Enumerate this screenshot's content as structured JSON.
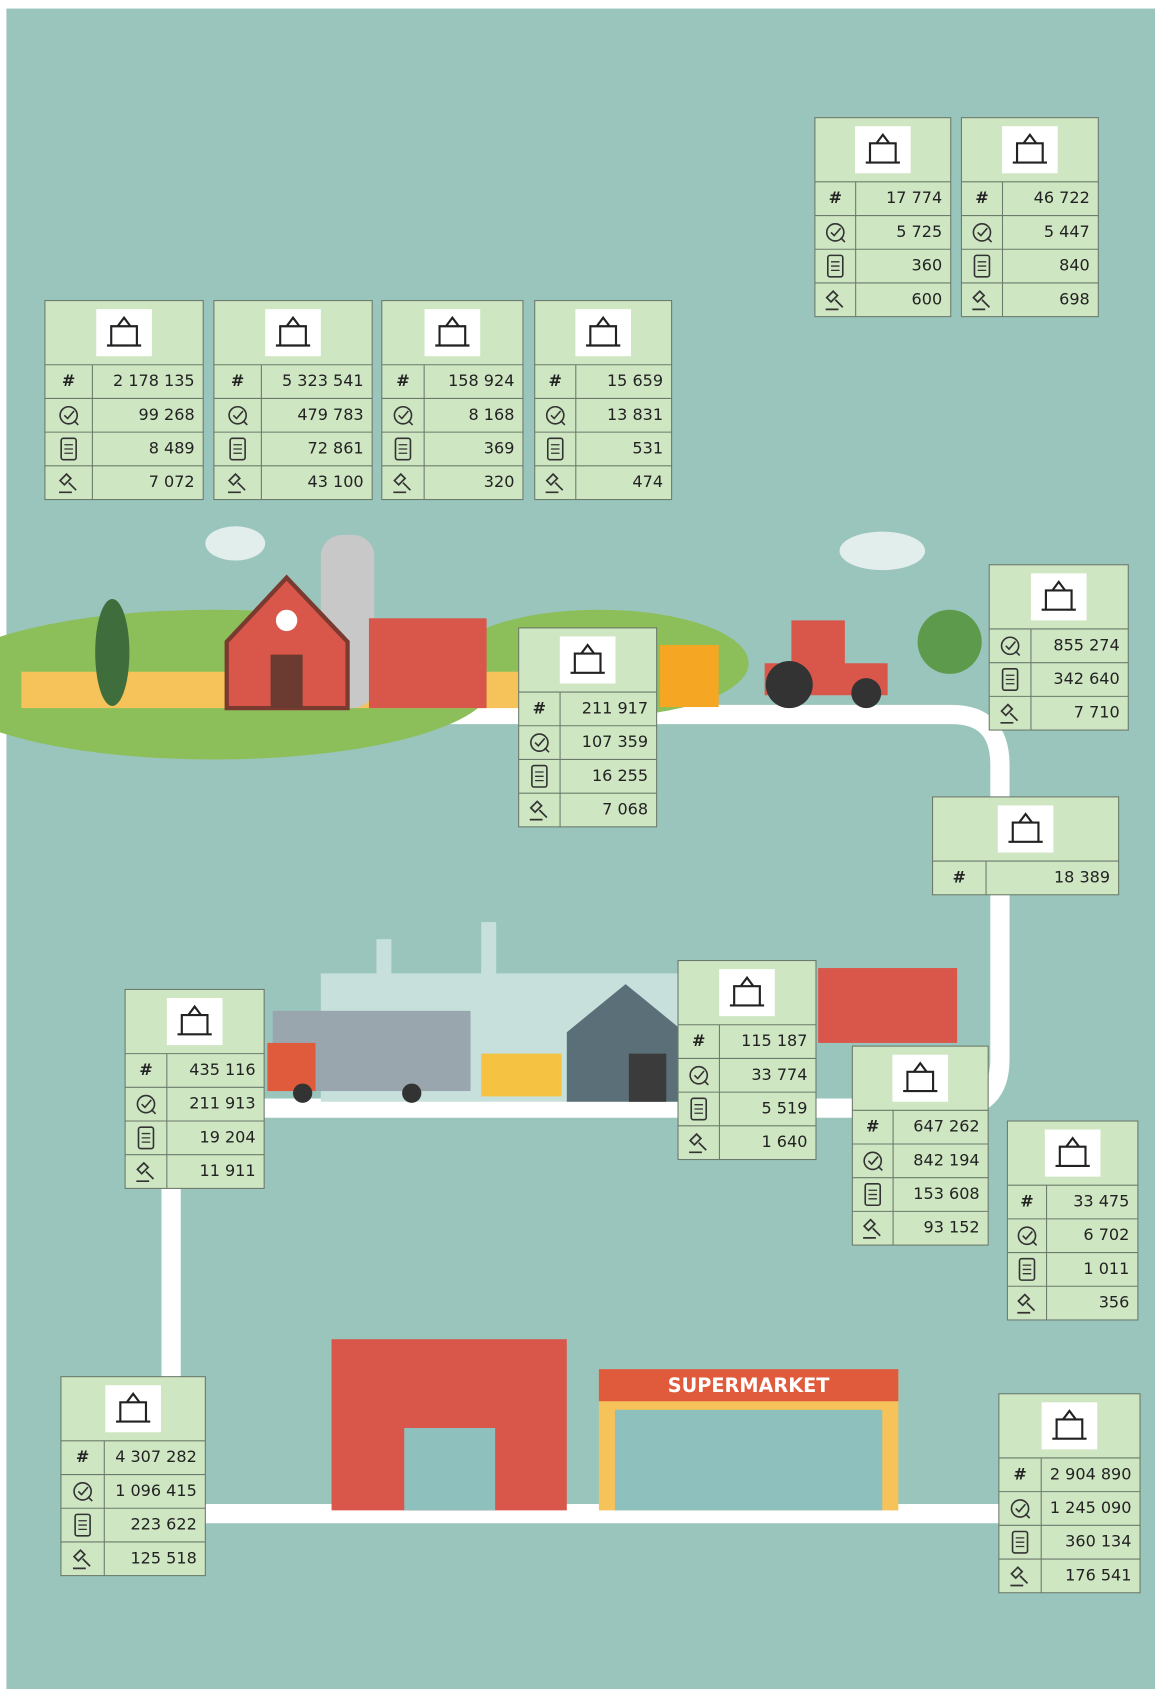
{
  "tables": [
    {
      "rows": [
        {
          "label": "#",
          "value": "2 178 135"
        },
        {
          "value": "99 268"
        },
        {
          "value": "8 489"
        },
        {
          "value": "7 072"
        }
      ]
    },
    {
      "rows": [
        {
          "label": "#",
          "value": "5 323 541"
        },
        {
          "value": "479 783"
        },
        {
          "value": "72 861"
        },
        {
          "value": "43 100"
        }
      ]
    },
    {
      "rows": [
        {
          "label": "#",
          "value": "158 924"
        },
        {
          "value": "8 168"
        },
        {
          "value": "369"
        },
        {
          "value": "320"
        }
      ]
    },
    {
      "rows": [
        {
          "label": "#",
          "value": "15 659"
        },
        {
          "value": "13 831"
        },
        {
          "value": "531"
        },
        {
          "value": "474"
        }
      ]
    },
    {
      "rows": [
        {
          "label": "#",
          "value": "17 774"
        },
        {
          "value": "5 725"
        },
        {
          "value": "360"
        },
        {
          "value": "600"
        }
      ]
    },
    {
      "rows": [
        {
          "label": "#",
          "value": "46 722"
        },
        {
          "value": "5 447"
        },
        {
          "value": "840"
        },
        {
          "value": "698"
        }
      ]
    },
    {
      "rows": [
        {
          "label": "#",
          "value": "211 917"
        },
        {
          "value": "107 359"
        },
        {
          "value": "16 255"
        },
        {
          "value": "7 068"
        }
      ]
    },
    {
      "rows": [
        {
          "value": "855 274"
        },
        {
          "value": "342 640"
        },
        {
          "value": "7 710"
        }
      ]
    },
    {
      "rows": [
        {
          "label": "#",
          "value": "18 389"
        }
      ]
    },
    {
      "rows": [
        {
          "label": "#",
          "value": "435 116"
        },
        {
          "value": "211 913"
        },
        {
          "value": "19 204"
        },
        {
          "value": "11 911"
        }
      ]
    },
    {
      "rows": [
        {
          "label": "#",
          "value": "115 187"
        },
        {
          "value": "33 774"
        },
        {
          "value": "5 519"
        },
        {
          "value": "1 640"
        }
      ]
    },
    {
      "rows": [
        {
          "label": "#",
          "value": "647 262"
        },
        {
          "value": "842 194"
        },
        {
          "value": "153 608"
        },
        {
          "value": "93 152"
        }
      ]
    },
    {
      "rows": [
        {
          "label": "#",
          "value": "33 475"
        },
        {
          "value": "6 702"
        },
        {
          "value": "1 011"
        },
        {
          "value": "356"
        }
      ]
    },
    {
      "rows": [
        {
          "label": "#",
          "value": "4 307 282"
        },
        {
          "value": "1 096 415"
        },
        {
          "value": "223 622"
        },
        {
          "value": "125 518"
        }
      ]
    },
    {
      "rows": [
        {
          "label": "#",
          "value": "2 904 890"
        },
        {
          "value": "1 245 090"
        },
        {
          "value": "360 134"
        },
        {
          "value": "176 541"
        }
      ]
    }
  ],
  "illustration": {
    "sign": "SUPERMARKET"
  }
}
